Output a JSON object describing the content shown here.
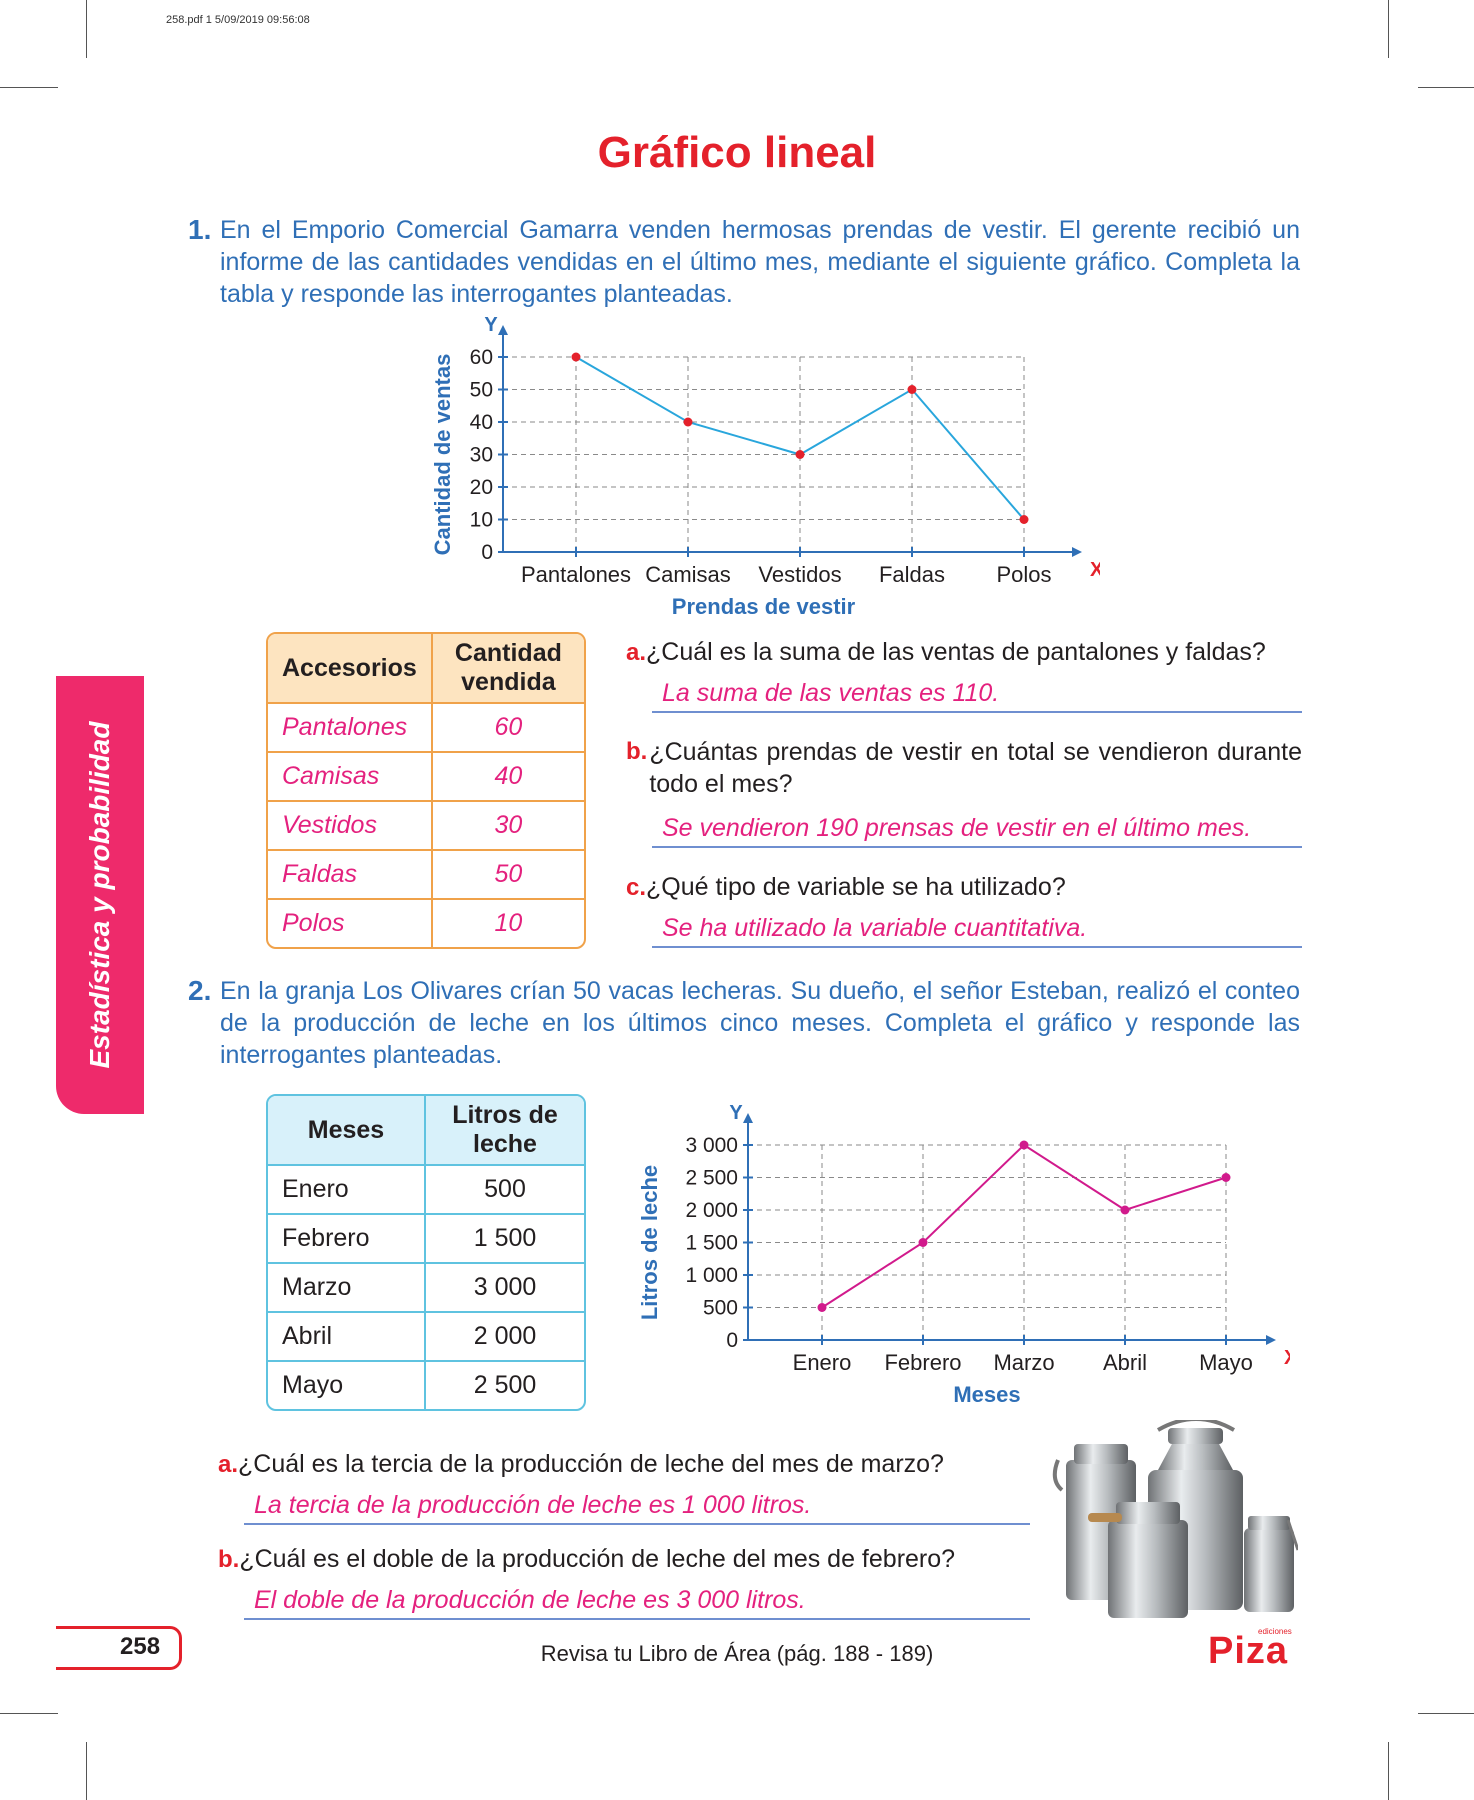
{
  "meta": "258.pdf  1  5/09/2019  09:56:08",
  "title": "Gráfico lineal",
  "side_tab": "Estadística y probabilidad",
  "ex1": {
    "num": "1.",
    "text": "En el Emporio Comercial Gamarra venden hermosas prendas de vestir. El gerente recibió un informe de las cantidades vendidas en el último mes, mediante el siguiente gráfico. Completa la tabla y responde las interrogantes planteadas.",
    "table": {
      "headers": [
        "Accesorios",
        "Cantidad vendida"
      ],
      "rows": [
        [
          "Pantalones",
          "60"
        ],
        [
          "Camisas",
          "40"
        ],
        [
          "Vestidos",
          "30"
        ],
        [
          "Faldas",
          "50"
        ],
        [
          "Polos",
          "10"
        ]
      ]
    },
    "questions": [
      {
        "label": "a.",
        "text": "¿Cuál es la suma de las ventas de pantalones y faldas?",
        "answer": "La suma de las ventas es 110."
      },
      {
        "label": "b.",
        "text": "¿Cuántas prendas de vestir en total se vendieron durante todo el mes?",
        "answer": "Se vendieron 190 prensas de vestir en el último mes."
      },
      {
        "label": "c.",
        "text": "¿Qué tipo de variable se ha utilizado?",
        "answer": "Se ha utilizado la variable cuantitativa."
      }
    ]
  },
  "ex2": {
    "num": "2.",
    "text": "En la granja Los Olivares crían 50 vacas lecheras. Su dueño, el señor Esteban, realizó el conteo de la producción de leche en los últimos cinco meses. Completa el gráfico y responde las interrogantes planteadas.",
    "table": {
      "headers": [
        "Meses",
        "Litros de leche"
      ],
      "rows": [
        [
          "Enero",
          "500"
        ],
        [
          "Febrero",
          "1 500"
        ],
        [
          "Marzo",
          "3 000"
        ],
        [
          "Abril",
          "2 000"
        ],
        [
          "Mayo",
          "2 500"
        ]
      ]
    },
    "questions": [
      {
        "label": "a.",
        "text": "¿Cuál es la tercia de la producción de leche del mes de marzo?",
        "answer": "La tercia de la producción de leche es 1 000 litros."
      },
      {
        "label": "b.",
        "text": "¿Cuál es el doble de la producción de leche del mes de febrero?",
        "answer": "El doble de la producción de leche es 3 000 litros."
      }
    ]
  },
  "chart_data": [
    {
      "type": "line",
      "categories": [
        "Pantalones",
        "Camisas",
        "Vestidos",
        "Faldas",
        "Polos"
      ],
      "values": [
        60,
        40,
        30,
        50,
        10
      ],
      "xlabel": "Prendas de vestir",
      "ylabel": "Cantidad de ventas",
      "x_axis_letter": "X",
      "y_axis_letter": "Y",
      "yticks": [
        0,
        10,
        20,
        30,
        40,
        50,
        60
      ],
      "ytick_labels": [
        "0",
        "10",
        "20",
        "30",
        "40",
        "50",
        "60"
      ],
      "ylim": [
        0,
        60
      ],
      "grid": true,
      "line_color": "#29a6dc",
      "point_color": "#e4212b"
    },
    {
      "type": "line",
      "categories": [
        "Enero",
        "Febrero",
        "Marzo",
        "Abril",
        "Mayo"
      ],
      "values": [
        500,
        1500,
        3000,
        2000,
        2500
      ],
      "xlabel": "Meses",
      "ylabel": "Litros de leche",
      "x_axis_letter": "X",
      "y_axis_letter": "Y",
      "yticks": [
        0,
        500,
        1000,
        1500,
        2000,
        2500,
        3000
      ],
      "ytick_labels": [
        "0",
        "500",
        "1 000",
        "1 500",
        "2 000",
        "2 500",
        "3 000"
      ],
      "ylim": [
        0,
        3000
      ],
      "grid": true,
      "line_color": "#d11a8c",
      "point_color": "#d11a8c"
    }
  ],
  "page_number": "258",
  "footer": "Revisa tu Libro de Área (pág. 188 - 189)",
  "logo": {
    "brand": "Piza",
    "small": "ediciones"
  },
  "illustration": "milk-cans-image",
  "colors": {
    "title": "#e4212b",
    "question_text": "#2f6fb6",
    "answer": "#e4217e",
    "tab": "#ee2a6b"
  }
}
